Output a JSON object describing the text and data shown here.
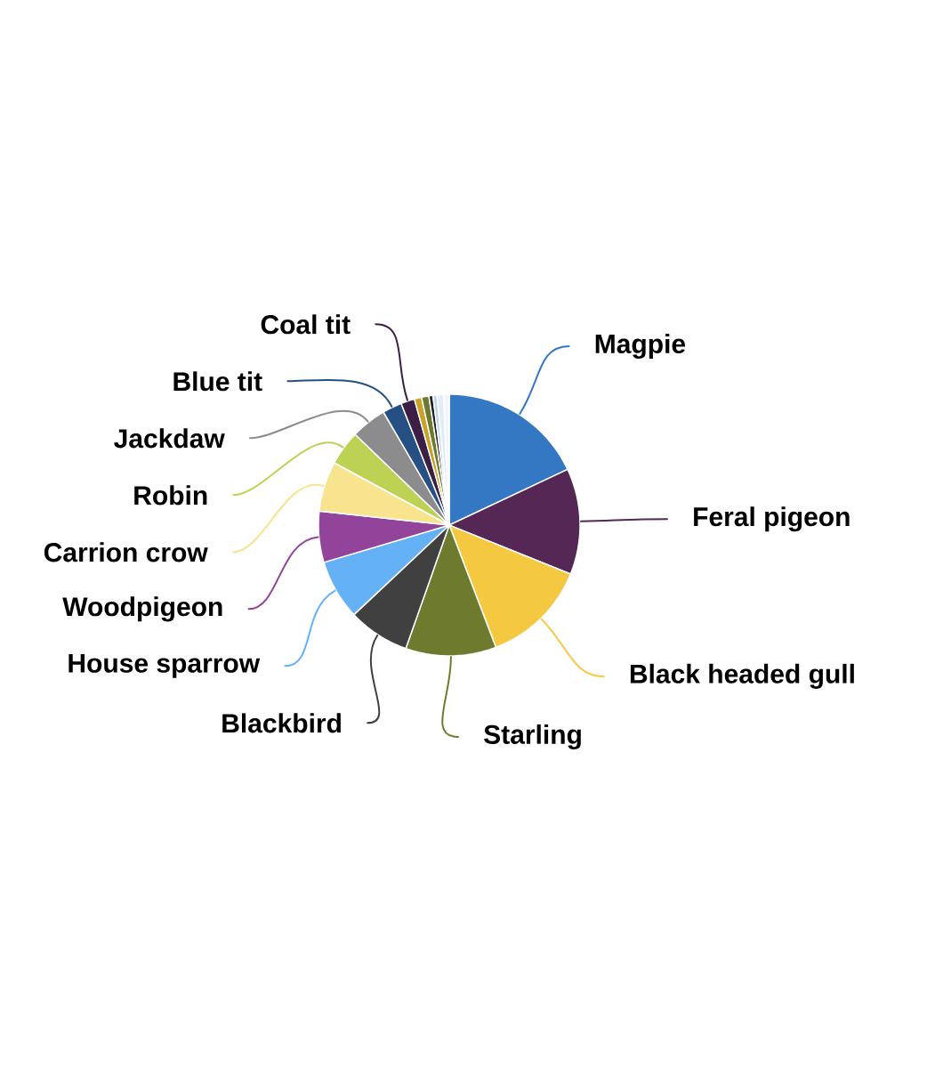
{
  "chart_data": {
    "type": "pie",
    "categories": [
      "Magpie",
      "Feral pigeon",
      "Black headed gull",
      "Starling",
      "Blackbird",
      "House sparrow",
      "Woodpigeon",
      "Carrion crow",
      "Robin",
      "Jackdaw",
      "Blue tit",
      "Coal tit",
      null,
      null,
      null,
      null,
      null,
      null
    ],
    "values": [
      18.0,
      13.1,
      13.1,
      11.2,
      7.6,
      7.4,
      6.3,
      6.2,
      4.3,
      4.4,
      2.4,
      1.7,
      0.9,
      0.9,
      0.5,
      0.5,
      0.8,
      0.7
    ],
    "colors": [
      "#3478c4",
      "#542755",
      "#f5c842",
      "#6e7b2f",
      "#404040",
      "#64b2f5",
      "#92439a",
      "#f8e38e",
      "#bdd154",
      "#8c8c8e",
      "#264f84",
      "#3c1f45",
      "#c9a227",
      "#6b7a2e",
      "#222222",
      "#bcd6f0",
      "#e3edf8",
      "#f2f6fb"
    ]
  }
}
